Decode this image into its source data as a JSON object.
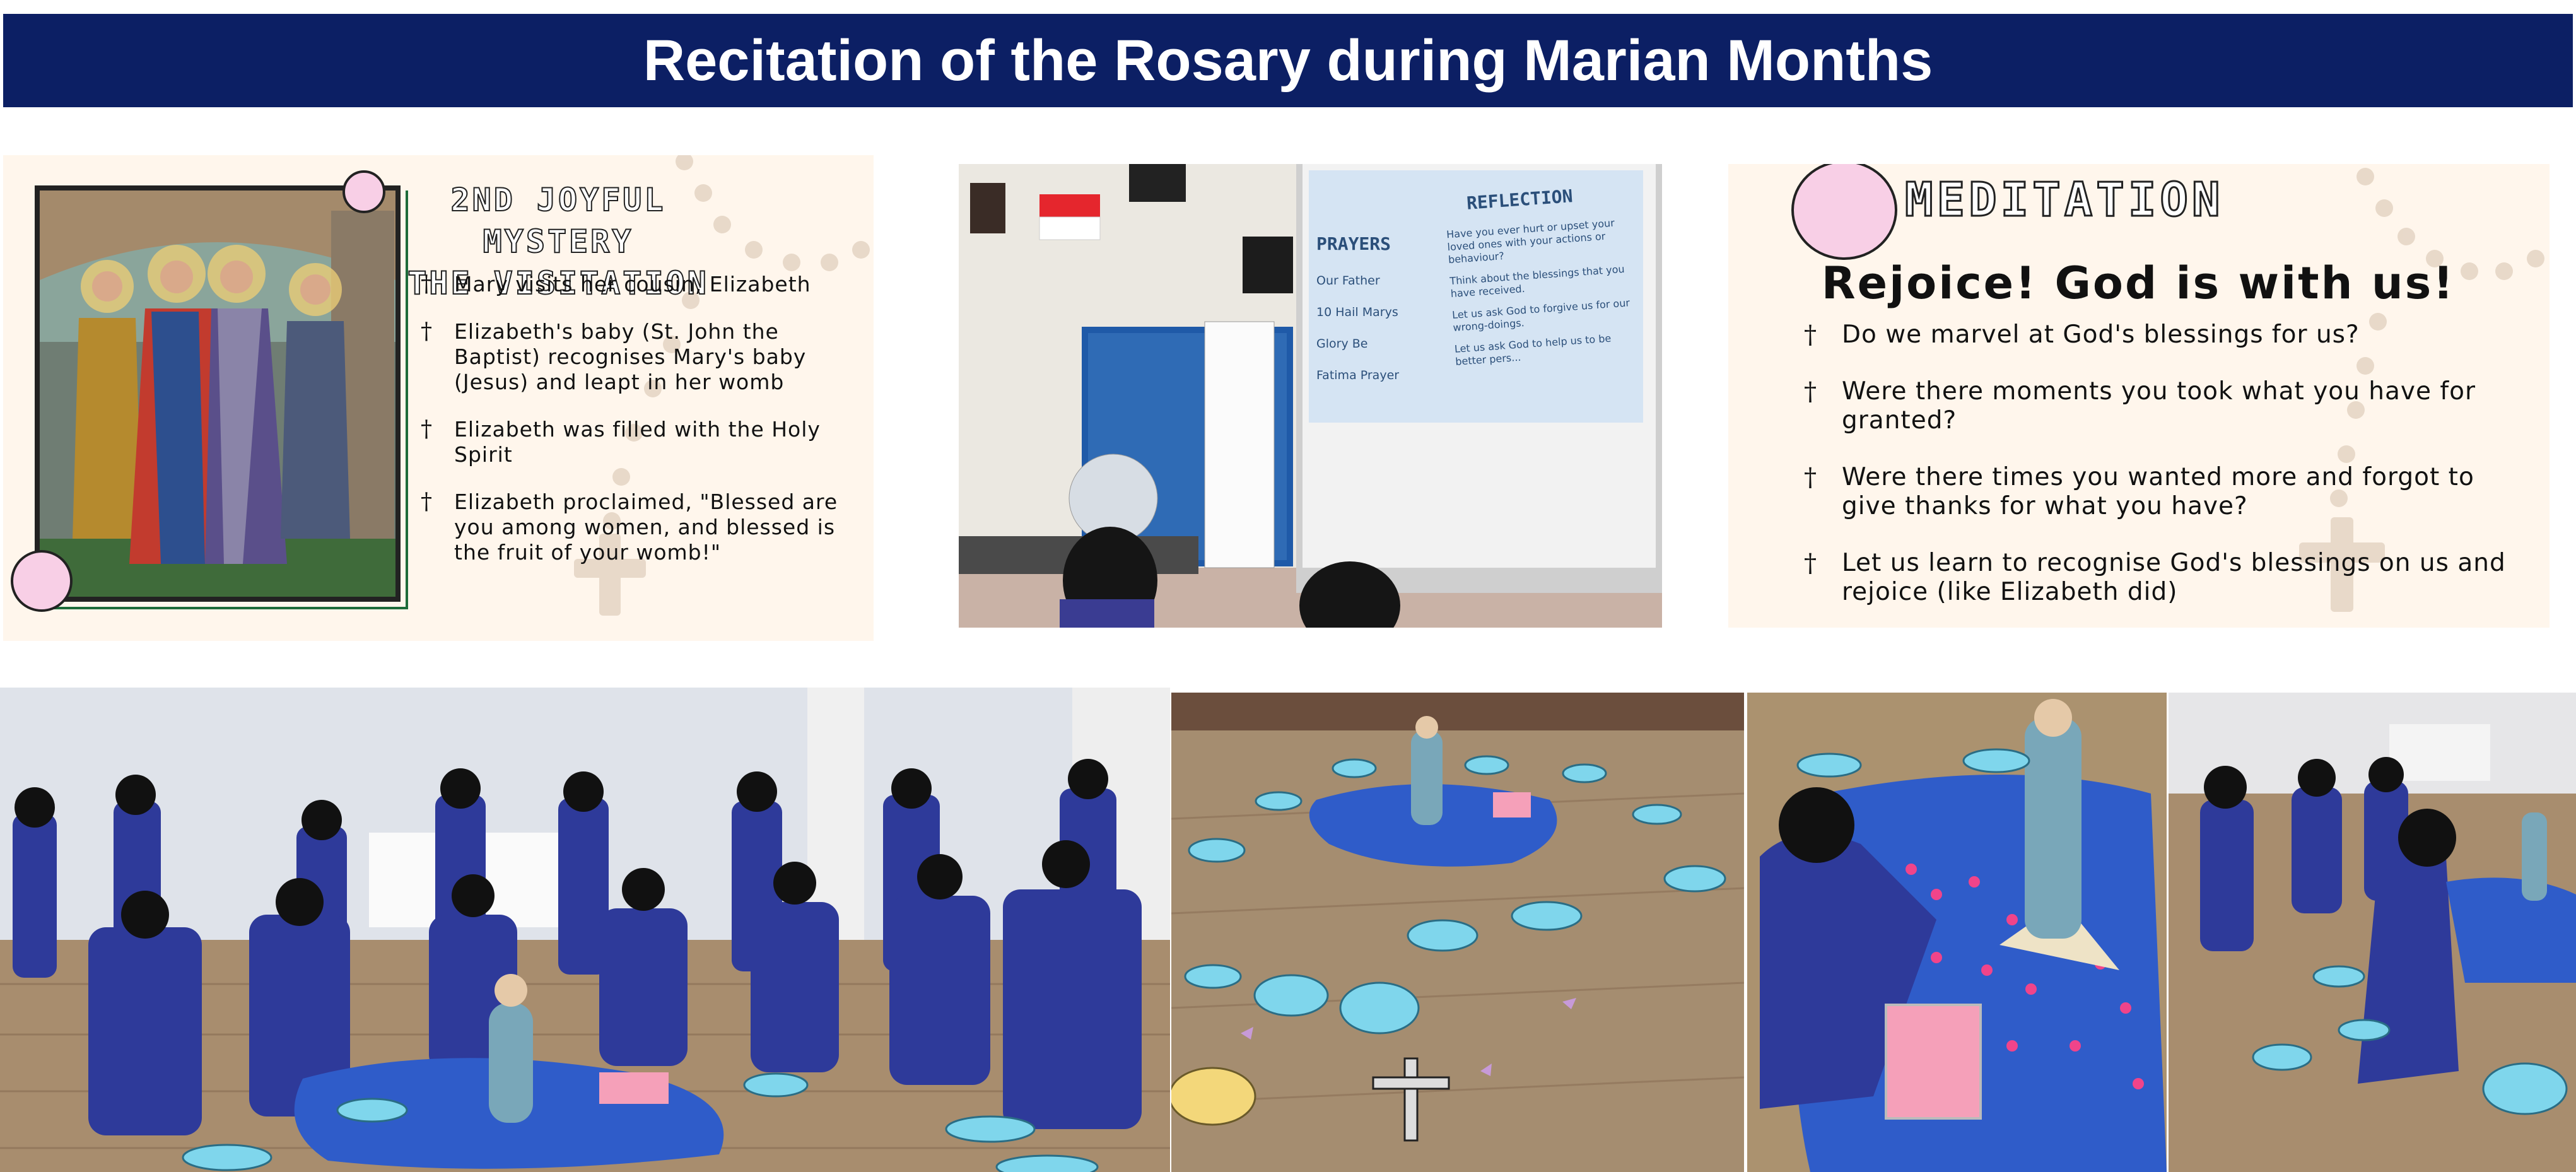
{
  "banner": {
    "title": "Recitation of the Rosary during Marian Months"
  },
  "mystery_card": {
    "title_line1": "2ND JOYFUL MYSTERY",
    "title_line2": "THE VISITATION",
    "bullet_symbol": "†",
    "points": [
      "Mary visits her cousin, Elizabeth",
      "Elizabeth's baby (St. John the Baptist) recognises Mary's baby (Jesus) and leapt in her womb",
      "Elizabeth was filled with the Holy Spirit",
      "Elizabeth proclaimed, \"Blessed are you among women, and blessed is the fruit of your womb!\""
    ]
  },
  "classroom_photo": {
    "slide": {
      "prayers_heading": "PRAYERS",
      "prayers": [
        "Our Father",
        "10 Hail Marys",
        "Glory Be",
        "Fatima Prayer"
      ],
      "reflection_heading": "REFLECTION",
      "reflections": [
        "Have you ever hurt or upset your loved ones with your actions or behaviour?",
        "Think about the blessings that you have received.",
        "Let us ask God to forgive us for our wrong-doings.",
        "Let us ask God to help us to be better pers..."
      ]
    }
  },
  "meditation_card": {
    "title": "MEDITATION",
    "subtitle": "Rejoice! God is with us!",
    "bullet_symbol": "†",
    "questions": [
      "Do we marvel at God's blessings for us?",
      "Were there moments you took what you have for granted?",
      "Were there times you wanted more and forgot to give thanks for what you have?",
      "Let us learn to recognise God's blessings on us and rejoice (like Elizabeth did)"
    ]
  },
  "colors": {
    "banner_bg": "#0c1f64",
    "card_bg": "#fff6ec",
    "uniform_blue": "#2e3a9a",
    "cloth_blue": "#2f5cc9",
    "petal_pink": "#f0448a",
    "floor_wood": "#a58d70",
    "mat_cyan": "#7fd6ec"
  },
  "icons": [
    "cross-bullet-icon",
    "rosary-chain-icon",
    "crucifix-icon",
    "singapore-flag-icon"
  ]
}
